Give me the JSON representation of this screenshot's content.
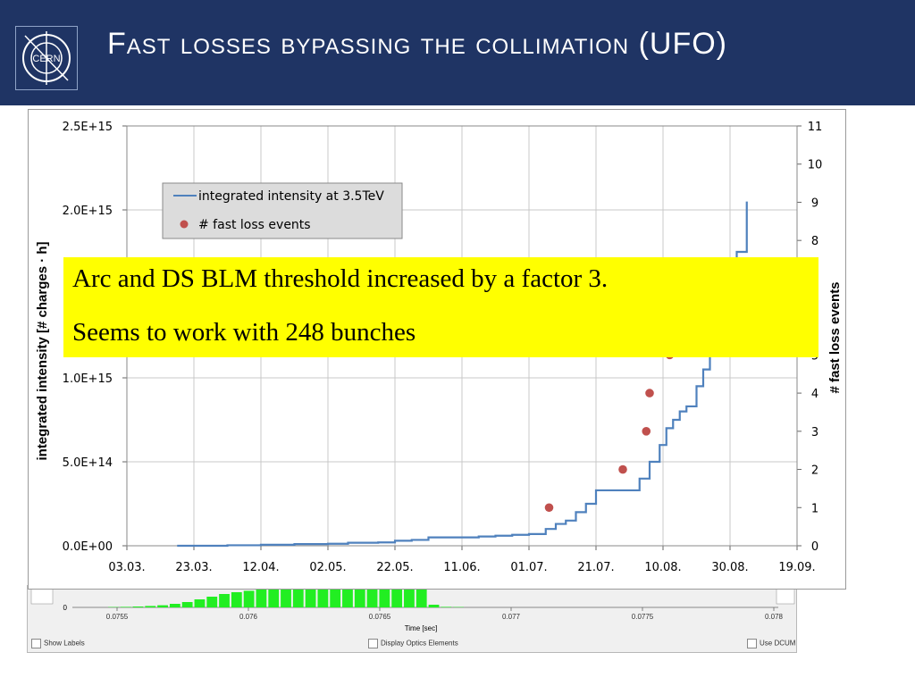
{
  "header": {
    "title": "Fast losses bypassing the collimation (UFO)",
    "logo_text": "CERN",
    "background": "#1f3464"
  },
  "annotation": {
    "line1": "Arc and DS BLM threshold increased by a factor 3.",
    "line2": "Seems to work with 248 bunches",
    "background": "#ffff00"
  },
  "background_panel": {
    "x_ticks": [
      "0.0755",
      "0.076",
      "0.0765",
      "0.077",
      "0.0775",
      "0.078"
    ],
    "y_tick": "0",
    "xlabel": "Time [sec]",
    "checkbox_show_labels": "Show Labels",
    "checkbox_optics": "Display Optics Elements",
    "checkbox_dcum": "Use DCUM",
    "bar_color": "#22ee22",
    "bar_values": [
      0.02,
      0.03,
      0.05,
      0.08,
      0.12,
      0.2,
      0.3,
      0.45,
      0.6,
      0.75,
      0.85,
      0.93,
      1,
      1,
      1,
      1,
      1,
      1,
      1,
      1,
      1,
      1,
      1,
      1,
      1,
      1,
      0.15,
      0.03,
      0.02
    ]
  },
  "chart_data": {
    "type": "line",
    "x_tick_labels": [
      "03.03.",
      "23.03.",
      "12.04.",
      "02.05.",
      "22.05.",
      "11.06.",
      "01.07.",
      "21.07.",
      "10.08.",
      "30.08.",
      "19.09."
    ],
    "x_range_days": [
      0,
      200
    ],
    "ylabel": "integrated intensity [# charges · h]",
    "ylabel_right": "# fast loss events",
    "y_tick_labels": [
      "0.0E+00",
      "5.0E+14",
      "1.0E+15",
      "1.5E+15",
      "2.0E+15",
      "2.5E+15"
    ],
    "ylim": [
      0,
      2500000000000000.0
    ],
    "y2_tick_labels": [
      "0",
      "1",
      "2",
      "3",
      "4",
      "5",
      "6",
      "7",
      "8",
      "9",
      "10",
      "11"
    ],
    "y2lim": [
      0,
      11
    ],
    "grid": true,
    "legend_placement": "top-left",
    "series": [
      {
        "name": "integrated intensity at 3.5TeV",
        "color": "#4f81bd",
        "points": [
          [
            15,
            0
          ],
          [
            30,
            3000000000000.0
          ],
          [
            40,
            6000000000000.0
          ],
          [
            50,
            10000000000000.0
          ],
          [
            60,
            12000000000000.0
          ],
          [
            66,
            18000000000000.0
          ],
          [
            75,
            20000000000000.0
          ],
          [
            80,
            30000000000000.0
          ],
          [
            85,
            35000000000000.0
          ],
          [
            90,
            50000000000000.0
          ],
          [
            100,
            50000000000000.0
          ],
          [
            105,
            55000000000000.0
          ],
          [
            110,
            60000000000000.0
          ],
          [
            115,
            65000000000000.0
          ],
          [
            120,
            70000000000000.0
          ],
          [
            125,
            100000000000000.0
          ],
          [
            128,
            130000000000000.0
          ],
          [
            131,
            150000000000000.0
          ],
          [
            134,
            200000000000000.0
          ],
          [
            137,
            250000000000000.0
          ],
          [
            140,
            330000000000000.0
          ],
          [
            150,
            330000000000000.0
          ],
          [
            153,
            400000000000000.0
          ],
          [
            156,
            500000000000000.0
          ],
          [
            159,
            600000000000000.0
          ],
          [
            161,
            700000000000000.0
          ],
          [
            163,
            750000000000000.0
          ],
          [
            165,
            800000000000000.0
          ],
          [
            167,
            830000000000000.0
          ],
          [
            170,
            950000000000000.0
          ],
          [
            172,
            1050000000000000.0
          ],
          [
            174,
            1150000000000000.0
          ],
          [
            176,
            1300000000000000.0
          ],
          [
            178,
            1450000000000000.0
          ],
          [
            180,
            1600000000000000.0
          ],
          [
            182,
            1750000000000000.0
          ],
          [
            183,
            1750000000000000.0
          ],
          [
            185,
            2050000000000000.0
          ]
        ]
      },
      {
        "name": "# fast loss events",
        "color": "#c0504d",
        "axis": "right",
        "points": [
          [
            126,
            1
          ],
          [
            148,
            2
          ],
          [
            155,
            3
          ],
          [
            156,
            4
          ],
          [
            162,
            5
          ]
        ]
      }
    ]
  }
}
